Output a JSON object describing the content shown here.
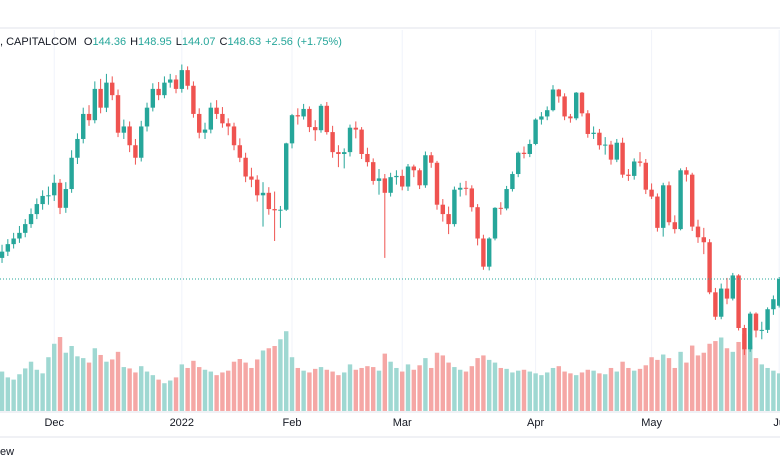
{
  "chart_data": {
    "type": "candlestick",
    "title": ", CAPITALCOM",
    "ohlc_labels": [
      "O",
      "H",
      "L",
      "C"
    ],
    "change": {
      "value": 2.56,
      "label": "+2.56"
    },
    "change_pct": {
      "value": 1.75,
      "label": "(+1.75%)"
    },
    "footer": "ew",
    "up_color": "#26a69a",
    "down_color": "#ef5350",
    "volume_up_color": "#9fd8d2",
    "volume_down_color": "#f5a7a5",
    "xlim": [
      -0.35,
      134.14
    ],
    "ylim": [
      127.54,
      188.41
    ],
    "vlim": [
      0,
      850
    ],
    "grid": true,
    "xticks": [
      {
        "value": 9,
        "label": "Dec"
      },
      {
        "value": 31,
        "label": "2022"
      },
      {
        "value": 50,
        "label": "Feb"
      },
      {
        "value": 69,
        "label": "Mar"
      },
      {
        "value": 92,
        "label": "Apr"
      },
      {
        "value": 112,
        "label": "May"
      },
      {
        "value": 134,
        "label": "Ju"
      }
    ],
    "ohlc": [
      [
        152.0,
        154.1,
        151.2,
        153.0
      ],
      [
        153.0,
        155.0,
        152.3,
        154.2
      ],
      [
        154.2,
        156.0,
        153.5,
        155.1
      ],
      [
        155.1,
        157.1,
        154.4,
        156.0
      ],
      [
        156.0,
        158.2,
        155.3,
        157.4
      ],
      [
        157.4,
        159.9,
        156.8,
        159.0
      ],
      [
        159.0,
        161.5,
        158.2,
        160.6
      ],
      [
        160.6,
        162.8,
        159.7,
        161.9
      ],
      [
        161.9,
        163.4,
        160.5,
        162.0
      ],
      [
        162.0,
        165.3,
        161.1,
        164.0
      ],
      [
        164.0,
        164.6,
        159.0,
        160.0
      ],
      [
        160.0,
        164.1,
        159.2,
        163.0
      ],
      [
        163.0,
        169.2,
        162.4,
        168.0
      ],
      [
        168.0,
        171.9,
        167.0,
        171.0
      ],
      [
        171.0,
        176.0,
        170.3,
        175.0
      ],
      [
        175.0,
        176.4,
        173.1,
        174.0
      ],
      [
        174.0,
        180.2,
        173.5,
        179.0
      ],
      [
        179.0,
        180.6,
        175.1,
        176.0
      ],
      [
        176.0,
        181.4,
        175.3,
        180.0
      ],
      [
        180.0,
        181.0,
        177.2,
        178.0
      ],
      [
        178.0,
        178.9,
        171.3,
        172.0
      ],
      [
        172.0,
        174.1,
        171.0,
        173.0
      ],
      [
        173.0,
        173.8,
        168.9,
        170.0
      ],
      [
        170.0,
        171.0,
        166.9,
        168.0
      ],
      [
        168.0,
        173.9,
        167.4,
        173.0
      ],
      [
        173.0,
        176.8,
        172.2,
        176.0
      ],
      [
        176.0,
        179.9,
        175.4,
        179.0
      ],
      [
        179.0,
        180.1,
        177.2,
        178.0
      ],
      [
        178.0,
        181.0,
        177.5,
        180.0
      ],
      [
        180.0,
        181.4,
        179.2,
        180.5
      ],
      [
        180.5,
        181.2,
        178.3,
        179.0
      ],
      [
        179.0,
        182.9,
        178.4,
        182.0
      ],
      [
        182.0,
        182.6,
        178.9,
        179.5
      ],
      [
        179.5,
        180.2,
        174.4,
        175.0
      ],
      [
        175.0,
        175.9,
        171.1,
        172.0
      ],
      [
        172.0,
        173.6,
        171.0,
        172.5
      ],
      [
        172.5,
        176.8,
        171.9,
        176.0
      ],
      [
        176.0,
        177.2,
        174.2,
        175.0
      ],
      [
        175.0,
        176.1,
        172.8,
        173.5
      ],
      [
        173.5,
        174.3,
        171.6,
        173.0
      ],
      [
        173.0,
        173.6,
        169.2,
        170.0
      ],
      [
        170.0,
        171.1,
        167.3,
        168.0
      ],
      [
        168.0,
        168.8,
        164.1,
        165.0
      ],
      [
        165.0,
        166.4,
        163.3,
        164.5
      ],
      [
        164.5,
        165.2,
        161.0,
        162.0
      ],
      [
        162.0,
        164.1,
        157.0,
        162.4
      ],
      [
        162.4,
        163.3,
        158.9,
        159.8
      ],
      [
        159.8,
        162.6,
        154.7,
        159.6
      ],
      [
        159.6,
        160.3,
        156.8,
        159.7
      ],
      [
        159.7,
        170.4,
        159.5,
        170.3
      ],
      [
        170.3,
        175.0,
        169.5,
        174.8
      ],
      [
        174.8,
        175.9,
        173.3,
        174.6
      ],
      [
        174.6,
        176.6,
        174.1,
        175.8
      ],
      [
        175.8,
        176.2,
        172.1,
        172.9
      ],
      [
        172.9,
        174.0,
        170.7,
        172.4
      ],
      [
        172.4,
        176.6,
        172.0,
        176.3
      ],
      [
        176.3,
        176.9,
        171.7,
        172.1
      ],
      [
        172.1,
        173.1,
        168.0,
        168.9
      ],
      [
        168.9,
        170.0,
        166.5,
        168.6
      ],
      [
        168.6,
        169.5,
        166.3,
        168.9
      ],
      [
        168.9,
        173.3,
        168.2,
        172.8
      ],
      [
        172.8,
        173.8,
        171.1,
        172.5
      ],
      [
        172.5,
        172.9,
        167.8,
        168.6
      ],
      [
        168.6,
        169.6,
        166.6,
        167.3
      ],
      [
        167.3,
        167.9,
        163.7,
        164.3
      ],
      [
        164.3,
        166.2,
        162.1,
        164.7
      ],
      [
        164.7,
        165.4,
        152.0,
        162.4
      ],
      [
        162.4,
        165.6,
        161.8,
        164.9
      ],
      [
        164.9,
        166.0,
        163.7,
        165.1
      ],
      [
        165.1,
        166.1,
        162.8,
        163.4
      ],
      [
        163.4,
        167.0,
        162.7,
        166.6
      ],
      [
        166.6,
        166.9,
        164.9,
        166.0
      ],
      [
        166.0,
        166.3,
        163.0,
        163.6
      ],
      [
        163.6,
        169.0,
        163.2,
        168.4
      ],
      [
        168.4,
        168.9,
        166.4,
        167.2
      ],
      [
        167.2,
        167.5,
        159.7,
        160.5
      ],
      [
        160.5,
        161.4,
        157.8,
        159.0
      ],
      [
        159.0,
        160.2,
        155.8,
        157.4
      ],
      [
        157.4,
        163.4,
        157.0,
        162.9
      ],
      [
        162.9,
        164.0,
        161.8,
        163.2
      ],
      [
        163.2,
        164.3,
        162.0,
        163.1
      ],
      [
        163.1,
        163.6,
        159.4,
        160.1
      ],
      [
        160.1,
        160.6,
        154.0,
        155.1
      ],
      [
        155.1,
        155.7,
        150.1,
        150.6
      ],
      [
        150.6,
        155.3,
        150.0,
        155.1
      ],
      [
        155.1,
        160.1,
        154.8,
        160.0
      ],
      [
        160.0,
        160.9,
        158.9,
        159.9
      ],
      [
        159.9,
        163.5,
        159.6,
        163.0
      ],
      [
        163.0,
        165.8,
        162.6,
        165.4
      ],
      [
        165.4,
        169.0,
        164.9,
        168.8
      ],
      [
        168.8,
        169.8,
        167.9,
        168.6
      ],
      [
        168.6,
        170.9,
        168.1,
        170.2
      ],
      [
        170.2,
        174.3,
        170.0,
        174.1
      ],
      [
        174.1,
        175.3,
        173.3,
        174.6
      ],
      [
        174.6,
        176.2,
        174.0,
        175.6
      ],
      [
        175.6,
        179.6,
        175.4,
        178.9
      ],
      [
        178.9,
        179.0,
        176.8,
        177.8
      ],
      [
        177.8,
        178.3,
        174.0,
        174.6
      ],
      [
        174.6,
        175.0,
        173.6,
        174.3
      ],
      [
        174.3,
        178.5,
        174.0,
        178.4
      ],
      [
        178.4,
        178.5,
        174.6,
        175.1
      ],
      [
        175.1,
        175.6,
        171.2,
        171.8
      ],
      [
        171.8,
        173.0,
        171.0,
        172.0
      ],
      [
        172.0,
        172.6,
        169.3,
        170.0
      ],
      [
        170.0,
        171.3,
        168.5,
        170.1
      ],
      [
        170.1,
        170.7,
        166.9,
        167.7
      ],
      [
        167.7,
        171.0,
        167.3,
        170.4
      ],
      [
        170.4,
        171.2,
        164.8,
        165.3
      ],
      [
        165.3,
        166.2,
        164.3,
        165.1
      ],
      [
        165.1,
        167.9,
        164.5,
        167.4
      ],
      [
        167.4,
        168.9,
        166.6,
        167.2
      ],
      [
        167.2,
        167.8,
        162.2,
        162.9
      ],
      [
        162.9,
        163.9,
        161.4,
        161.8
      ],
      [
        161.8,
        162.3,
        156.2,
        156.8
      ],
      [
        156.8,
        164.0,
        155.4,
        163.6
      ],
      [
        163.6,
        164.2,
        157.2,
        157.7
      ],
      [
        157.7,
        158.8,
        155.9,
        156.6
      ],
      [
        156.6,
        166.3,
        156.4,
        166.0
      ],
      [
        166.0,
        166.5,
        164.2,
        165.3
      ],
      [
        165.3,
        165.6,
        156.3,
        157.0
      ],
      [
        157.0,
        158.1,
        154.4,
        155.3
      ],
      [
        155.3,
        156.8,
        152.6,
        154.5
      ],
      [
        154.5,
        155.0,
        146.2,
        146.5
      ],
      [
        146.5,
        147.2,
        142.1,
        142.6
      ],
      [
        142.6,
        147.9,
        142.2,
        147.1
      ],
      [
        147.1,
        148.8,
        144.6,
        145.5
      ],
      [
        145.5,
        149.6,
        145.2,
        149.2
      ],
      [
        149.2,
        149.4,
        140.4,
        140.8
      ],
      [
        140.8,
        141.3,
        136.5,
        137.4
      ],
      [
        137.4,
        143.4,
        137.0,
        143.1
      ],
      [
        143.1,
        143.3,
        139.3,
        140.4
      ],
      [
        140.4,
        141.8,
        139.0,
        140.5
      ],
      [
        140.5,
        144.1,
        140.0,
        143.8
      ],
      [
        143.8,
        146.0,
        142.9,
        145.4
      ],
      [
        144.36,
        148.95,
        144.07,
        148.63
      ]
    ],
    "volume": [
      88,
      75,
      70,
      82,
      95,
      110,
      92,
      84,
      120,
      150,
      165,
      130,
      145,
      122,
      118,
      108,
      140,
      125,
      110,
      115,
      132,
      98,
      95,
      86,
      100,
      88,
      80,
      70,
      62,
      68,
      75,
      104,
      96,
      112,
      98,
      92,
      88,
      80,
      86,
      90,
      110,
      116,
      108,
      96,
      115,
      135,
      140,
      145,
      160,
      178,
      120,
      96,
      90,
      86,
      94,
      98,
      92,
      88,
      80,
      86,
      104,
      92,
      96,
      100,
      98,
      90,
      128,
      110,
      96,
      88,
      104,
      92,
      102,
      118,
      96,
      130,
      124,
      108,
      98,
      92,
      88,
      100,
      118,
      124,
      114,
      108,
      96,
      94,
      86,
      90,
      92,
      88,
      84,
      80,
      86,
      96,
      100,
      88,
      84,
      80,
      86,
      92,
      90,
      84,
      82,
      96,
      88,
      110,
      96,
      90,
      94,
      102,
      120,
      114,
      126,
      118,
      96,
      132,
      108,
      146,
      124,
      130,
      150,
      156,
      164,
      140,
      132,
      154,
      172,
      146,
      118,
      104,
      96,
      90,
      84
    ]
  }
}
